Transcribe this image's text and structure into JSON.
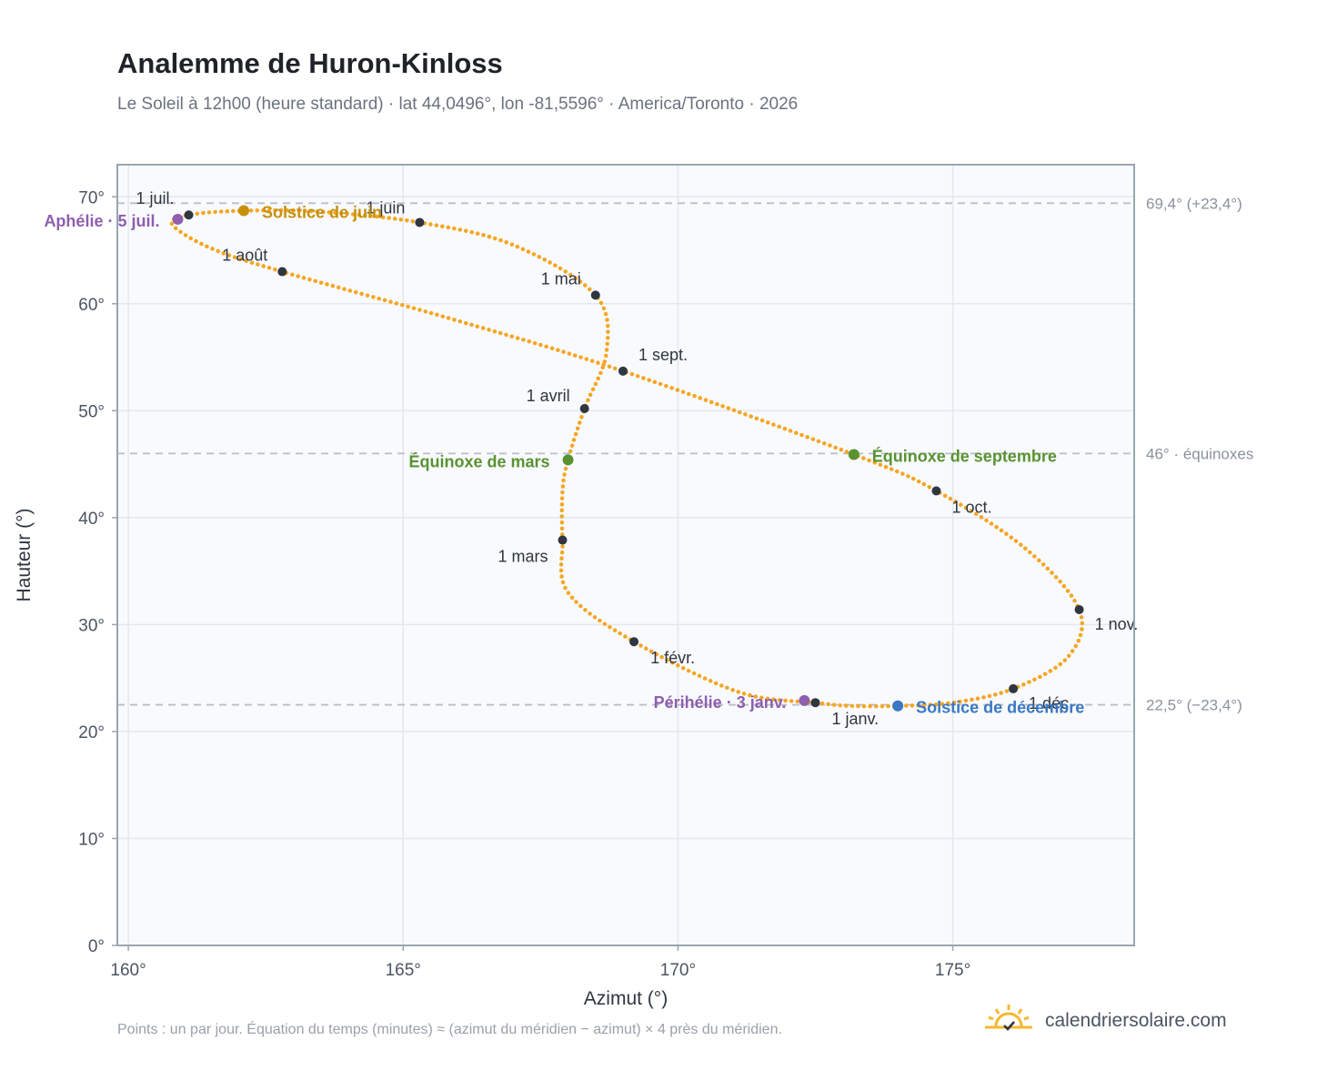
{
  "title": "Analemme de Huron-Kinloss",
  "subtitle": "Le Soleil à 12h00 (heure standard) · lat 44,0496°, lon -81,5596° · America/Toronto · 2026",
  "footnote": "Points : un par jour. Équation du temps (minutes) ≈ (azimut du méridien − azimut) × 4 près du méridien.",
  "brand": {
    "name": "calendriersolaire.com",
    "icon": "sun-logo-icon"
  },
  "colors": {
    "curve": "#f5a623",
    "month_marker": "#2f3640",
    "solstice_june": "#c8900a",
    "solstice_december": "#3b78c3",
    "equinox": "#5a9232",
    "apsis": "#8e5fad",
    "reference_line": "#b8bfc7",
    "grid": "#e3e8ee",
    "plot_bg": "#f8fafd",
    "axis": "#9aa5b1"
  },
  "chart_data": {
    "type": "scatter",
    "title": "Analemme de Huron-Kinloss",
    "xlabel": "Azimut (°)",
    "ylabel": "Hauteur (°)",
    "xlim": [
      159.8,
      178.3
    ],
    "ylim": [
      0,
      73
    ],
    "x_ticks": [
      160,
      165,
      170,
      175
    ],
    "x_tick_labels": [
      "160°",
      "165°",
      "170°",
      "175°"
    ],
    "y_ticks": [
      0,
      10,
      20,
      30,
      40,
      50,
      60,
      70
    ],
    "y_tick_labels": [
      "0°",
      "10°",
      "20°",
      "30°",
      "40°",
      "50°",
      "60°",
      "70°"
    ],
    "grid": true,
    "reference_lines": [
      {
        "y": 69.4,
        "label": "69,4° (+23,4°)"
      },
      {
        "y": 46.0,
        "label": "46° · équinoxes"
      },
      {
        "y": 22.5,
        "label": "22,5° (−23,4°)"
      }
    ],
    "month_markers": [
      {
        "label": "1 janv.",
        "x": 172.5,
        "y": 22.7
      },
      {
        "label": "1 févr.",
        "x": 169.2,
        "y": 28.4
      },
      {
        "label": "1 mars",
        "x": 167.9,
        "y": 37.9
      },
      {
        "label": "1 avril",
        "x": 168.3,
        "y": 50.2
      },
      {
        "label": "1 mai",
        "x": 168.5,
        "y": 60.8
      },
      {
        "label": "1 juin",
        "x": 165.3,
        "y": 67.6
      },
      {
        "label": "1 juil.",
        "x": 161.1,
        "y": 68.3
      },
      {
        "label": "1 août",
        "x": 162.8,
        "y": 63.0
      },
      {
        "label": "1 sept.",
        "x": 169.0,
        "y": 53.7
      },
      {
        "label": "1 oct.",
        "x": 174.7,
        "y": 42.5
      },
      {
        "label": "1 nov.",
        "x": 177.3,
        "y": 31.4
      },
      {
        "label": "1 déc.",
        "x": 176.1,
        "y": 24.0
      }
    ],
    "events": [
      {
        "label": "Solstice de juin",
        "x": 162.1,
        "y": 68.7,
        "kind": "solstice_june"
      },
      {
        "label": "Solstice de décembre",
        "x": 174.0,
        "y": 22.4,
        "kind": "solstice_december"
      },
      {
        "label": "Équinoxe de mars",
        "x": 168.0,
        "y": 45.4,
        "kind": "equinox"
      },
      {
        "label": "Équinoxe de septembre",
        "x": 173.2,
        "y": 45.9,
        "kind": "equinox"
      },
      {
        "label": "Aphélie · 5 juil.",
        "x": 160.9,
        "y": 67.9,
        "kind": "apsis"
      },
      {
        "label": "Périhélie · 3 janv.",
        "x": 172.3,
        "y": 22.9,
        "kind": "apsis"
      }
    ],
    "curve_path": [
      {
        "x": 172.5,
        "y": 22.7
      },
      {
        "x": 171.1,
        "y": 23.7
      },
      {
        "x": 169.2,
        "y": 28.4
      },
      {
        "x": 168.0,
        "y": 33.0
      },
      {
        "x": 167.9,
        "y": 37.9
      },
      {
        "x": 167.9,
        "y": 42.5
      },
      {
        "x": 168.0,
        "y": 45.4
      },
      {
        "x": 168.3,
        "y": 50.2
      },
      {
        "x": 168.7,
        "y": 55.5
      },
      {
        "x": 168.5,
        "y": 60.8
      },
      {
        "x": 167.0,
        "y": 65.5
      },
      {
        "x": 165.3,
        "y": 67.6
      },
      {
        "x": 163.5,
        "y": 68.6
      },
      {
        "x": 162.1,
        "y": 68.7
      },
      {
        "x": 161.1,
        "y": 68.3
      },
      {
        "x": 160.8,
        "y": 67.4
      },
      {
        "x": 161.5,
        "y": 65.2
      },
      {
        "x": 162.8,
        "y": 63.0
      },
      {
        "x": 166.0,
        "y": 58.4
      },
      {
        "x": 169.0,
        "y": 53.7
      },
      {
        "x": 173.2,
        "y": 45.9
      },
      {
        "x": 174.7,
        "y": 42.5
      },
      {
        "x": 176.3,
        "y": 37.2
      },
      {
        "x": 177.3,
        "y": 31.4
      },
      {
        "x": 177.1,
        "y": 27.0
      },
      {
        "x": 176.1,
        "y": 24.0
      },
      {
        "x": 175.0,
        "y": 22.7
      },
      {
        "x": 174.0,
        "y": 22.4
      },
      {
        "x": 173.1,
        "y": 22.4
      },
      {
        "x": 172.5,
        "y": 22.7
      }
    ]
  }
}
